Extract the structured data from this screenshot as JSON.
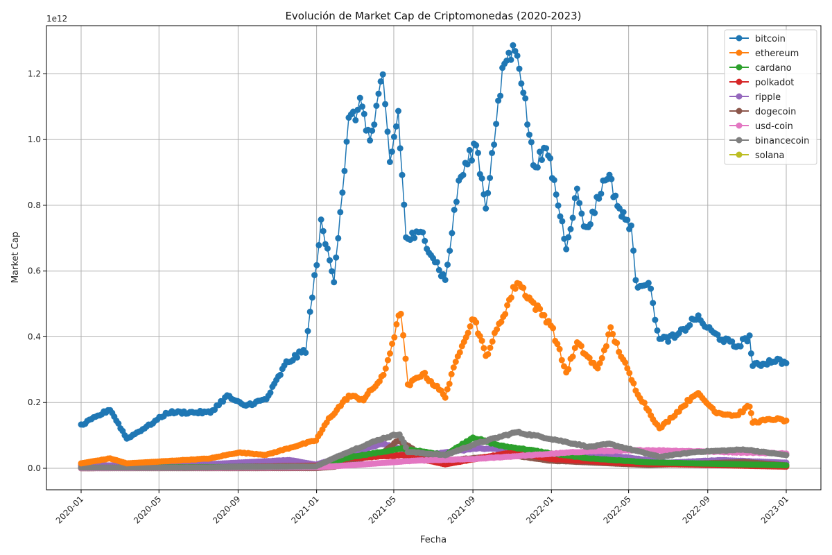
{
  "chart_data": {
    "type": "line",
    "title": "Evolución de Market Cap de Criptomonedas (2020-2023)",
    "xlabel": "Fecha",
    "ylabel": "Market Cap",
    "y_offset_label": "1e12",
    "xlim": [
      "2020-01-01",
      "2023-01-01"
    ],
    "ylim": [
      0,
      1.3
    ],
    "y_scale_factor": 1000000000000.0,
    "x_ticks": [
      "2020-01",
      "2020-05",
      "2020-09",
      "2021-01",
      "2021-05",
      "2021-09",
      "2022-01",
      "2022-05",
      "2022-09",
      "2023-01"
    ],
    "y_ticks": [
      "0.0",
      "0.2",
      "0.4",
      "0.6",
      "0.8",
      "1.0",
      "1.2"
    ],
    "grid": true,
    "legend_position": "top-right",
    "series": [
      {
        "name": "bitcoin",
        "color": "#1f77b4",
        "points": [
          [
            "2020-01-01",
            0.13
          ],
          [
            "2020-02-15",
            0.18
          ],
          [
            "2020-03-12",
            0.09
          ],
          [
            "2020-04-15",
            0.13
          ],
          [
            "2020-05-15",
            0.17
          ],
          [
            "2020-06-15",
            0.17
          ],
          [
            "2020-07-20",
            0.17
          ],
          [
            "2020-08-15",
            0.22
          ],
          [
            "2020-09-10",
            0.19
          ],
          [
            "2020-10-15",
            0.21
          ],
          [
            "2020-11-15",
            0.32
          ],
          [
            "2020-12-15",
            0.36
          ],
          [
            "2021-01-08",
            0.74
          ],
          [
            "2021-01-28",
            0.58
          ],
          [
            "2021-02-20",
            1.05
          ],
          [
            "2021-03-13",
            1.11
          ],
          [
            "2021-03-25",
            0.99
          ],
          [
            "2021-04-14",
            1.18
          ],
          [
            "2021-04-25",
            0.93
          ],
          [
            "2021-05-08",
            1.08
          ],
          [
            "2021-05-20",
            0.7
          ],
          [
            "2021-06-15",
            0.71
          ],
          [
            "2021-07-20",
            0.57
          ],
          [
            "2021-08-10",
            0.87
          ],
          [
            "2021-09-06",
            0.99
          ],
          [
            "2021-09-21",
            0.8
          ],
          [
            "2021-10-20",
            1.24
          ],
          [
            "2021-11-09",
            1.28
          ],
          [
            "2021-12-04",
            0.93
          ],
          [
            "2021-12-27",
            0.96
          ],
          [
            "2022-01-24",
            0.68
          ],
          [
            "2022-02-10",
            0.84
          ],
          [
            "2022-02-24",
            0.72
          ],
          [
            "2022-03-29",
            0.9
          ],
          [
            "2022-04-20",
            0.77
          ],
          [
            "2022-05-05",
            0.74
          ],
          [
            "2022-05-12",
            0.56
          ],
          [
            "2022-06-01",
            0.57
          ],
          [
            "2022-06-18",
            0.39
          ],
          [
            "2022-07-15",
            0.4
          ],
          [
            "2022-08-14",
            0.46
          ],
          [
            "2022-09-10",
            0.41
          ],
          [
            "2022-10-15",
            0.37
          ],
          [
            "2022-11-05",
            0.4
          ],
          [
            "2022-11-10",
            0.31
          ],
          [
            "2022-12-15",
            0.33
          ],
          [
            "2023-01-01",
            0.32
          ]
        ]
      },
      {
        "name": "ethereum",
        "color": "#ff7f0e",
        "points": [
          [
            "2020-01-01",
            0.015
          ],
          [
            "2020-02-15",
            0.03
          ],
          [
            "2020-03-12",
            0.015
          ],
          [
            "2020-05-15",
            0.022
          ],
          [
            "2020-07-20",
            0.03
          ],
          [
            "2020-09-01",
            0.048
          ],
          [
            "2020-10-15",
            0.041
          ],
          [
            "2020-11-25",
            0.065
          ],
          [
            "2020-12-31",
            0.085
          ],
          [
            "2021-01-20",
            0.15
          ],
          [
            "2021-02-20",
            0.22
          ],
          [
            "2021-03-15",
            0.21
          ],
          [
            "2021-04-15",
            0.28
          ],
          [
            "2021-05-12",
            0.48
          ],
          [
            "2021-05-23",
            0.25
          ],
          [
            "2021-06-15",
            0.29
          ],
          [
            "2021-07-20",
            0.22
          ],
          [
            "2021-08-15",
            0.38
          ],
          [
            "2021-09-03",
            0.46
          ],
          [
            "2021-09-21",
            0.34
          ],
          [
            "2021-10-15",
            0.45
          ],
          [
            "2021-11-09",
            0.57
          ],
          [
            "2021-12-04",
            0.5
          ],
          [
            "2021-12-31",
            0.44
          ],
          [
            "2022-01-24",
            0.29
          ],
          [
            "2022-02-10",
            0.38
          ],
          [
            "2022-03-14",
            0.3
          ],
          [
            "2022-04-03",
            0.42
          ],
          [
            "2022-05-12",
            0.24
          ],
          [
            "2022-06-18",
            0.12
          ],
          [
            "2022-07-15",
            0.17
          ],
          [
            "2022-08-14",
            0.23
          ],
          [
            "2022-09-15",
            0.17
          ],
          [
            "2022-10-15",
            0.16
          ],
          [
            "2022-11-05",
            0.19
          ],
          [
            "2022-11-10",
            0.14
          ],
          [
            "2022-12-15",
            0.15
          ],
          [
            "2023-01-01",
            0.145
          ]
        ]
      },
      {
        "name": "cardano",
        "color": "#2ca02c",
        "points": [
          [
            "2020-01-01",
            0.001
          ],
          [
            "2020-12-31",
            0.006
          ],
          [
            "2021-02-25",
            0.035
          ],
          [
            "2021-05-15",
            0.06
          ],
          [
            "2021-07-20",
            0.04
          ],
          [
            "2021-09-01",
            0.094
          ],
          [
            "2021-10-15",
            0.068
          ],
          [
            "2021-11-15",
            0.06
          ],
          [
            "2022-01-01",
            0.045
          ],
          [
            "2022-03-01",
            0.03
          ],
          [
            "2022-06-01",
            0.018
          ],
          [
            "2023-01-01",
            0.009
          ]
        ]
      },
      {
        "name": "polkadot",
        "color": "#d62728",
        "points": [
          [
            "2020-08-20",
            0.004
          ],
          [
            "2020-12-31",
            0.008
          ],
          [
            "2021-02-20",
            0.03
          ],
          [
            "2021-05-15",
            0.04
          ],
          [
            "2021-07-20",
            0.012
          ],
          [
            "2021-11-04",
            0.05
          ],
          [
            "2022-01-01",
            0.028
          ],
          [
            "2022-05-01",
            0.015
          ],
          [
            "2023-01-01",
            0.005
          ]
        ]
      },
      {
        "name": "ripple",
        "color": "#9467bd",
        "points": [
          [
            "2020-01-01",
            0.009
          ],
          [
            "2020-06-01",
            0.008
          ],
          [
            "2020-11-20",
            0.025
          ],
          [
            "2020-12-31",
            0.011
          ],
          [
            "2021-04-14",
            0.075
          ],
          [
            "2021-06-15",
            0.04
          ],
          [
            "2021-09-06",
            0.06
          ],
          [
            "2021-11-10",
            0.058
          ],
          [
            "2022-01-01",
            0.04
          ],
          [
            "2022-04-01",
            0.04
          ],
          [
            "2022-07-01",
            0.017
          ],
          [
            "2022-09-20",
            0.025
          ],
          [
            "2023-01-01",
            0.017
          ]
        ]
      },
      {
        "name": "dogecoin",
        "color": "#8c564b",
        "points": [
          [
            "2020-01-01",
            0.0003
          ],
          [
            "2020-12-31",
            0.0006
          ],
          [
            "2021-01-29",
            0.005
          ],
          [
            "2021-04-16",
            0.05
          ],
          [
            "2021-05-08",
            0.085
          ],
          [
            "2021-06-15",
            0.04
          ],
          [
            "2021-07-20",
            0.024
          ],
          [
            "2021-10-28",
            0.04
          ],
          [
            "2022-01-01",
            0.023
          ],
          [
            "2022-06-01",
            0.01
          ],
          [
            "2022-10-29",
            0.019
          ],
          [
            "2023-01-01",
            0.009
          ]
        ]
      },
      {
        "name": "usd-coin",
        "color": "#e377c2",
        "points": [
          [
            "2020-01-01",
            0.0005
          ],
          [
            "2020-07-01",
            0.0015
          ],
          [
            "2020-12-31",
            0.003
          ],
          [
            "2021-03-01",
            0.01
          ],
          [
            "2021-06-01",
            0.023
          ],
          [
            "2021-09-01",
            0.028
          ],
          [
            "2021-12-01",
            0.04
          ],
          [
            "2022-03-01",
            0.052
          ],
          [
            "2022-06-01",
            0.055
          ],
          [
            "2022-09-01",
            0.051
          ],
          [
            "2023-01-01",
            0.045
          ]
        ]
      },
      {
        "name": "binancecoin",
        "color": "#7f7f7f",
        "points": [
          [
            "2020-01-01",
            0.002
          ],
          [
            "2020-06-01",
            0.002
          ],
          [
            "2020-12-31",
            0.006
          ],
          [
            "2021-02-19",
            0.05
          ],
          [
            "2021-04-12",
            0.09
          ],
          [
            "2021-05-10",
            0.105
          ],
          [
            "2021-05-23",
            0.05
          ],
          [
            "2021-07-20",
            0.04
          ],
          [
            "2021-09-06",
            0.075
          ],
          [
            "2021-11-08",
            0.11
          ],
          [
            "2021-12-31",
            0.09
          ],
          [
            "2022-03-01",
            0.065
          ],
          [
            "2022-04-01",
            0.074
          ],
          [
            "2022-06-18",
            0.035
          ],
          [
            "2022-08-15",
            0.05
          ],
          [
            "2022-10-29",
            0.057
          ],
          [
            "2023-01-01",
            0.04
          ]
        ]
      },
      {
        "name": "solana",
        "color": "#bcbd22",
        "points": []
      }
    ]
  }
}
